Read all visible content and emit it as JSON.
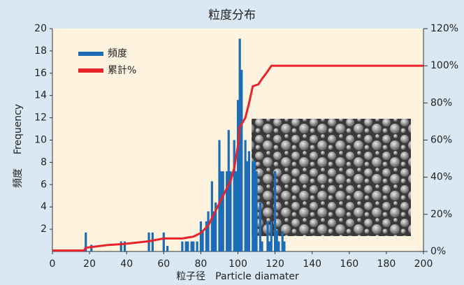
{
  "chart_data": {
    "type": "bar",
    "title": "粒度分布",
    "xlabel": "粒子径　Particle diamater",
    "ylabel": "Frequency",
    "ylabel2": "頻度",
    "xlim": [
      0,
      200
    ],
    "xticks": [
      0,
      20,
      40,
      60,
      80,
      100,
      120,
      140,
      160,
      180,
      200
    ],
    "ylim": [
      0,
      20
    ],
    "yticks": [
      2,
      4,
      6,
      8,
      10,
      12,
      14,
      16,
      18,
      20
    ],
    "y2lim": [
      0,
      120
    ],
    "y2ticks": [
      {
        "value": 0,
        "label": "0%"
      },
      {
        "value": 20,
        "label": "20%"
      },
      {
        "value": 40,
        "label": "40%"
      },
      {
        "value": 60,
        "label": "60%"
      },
      {
        "value": 80,
        "label": "80%"
      },
      {
        "value": 100,
        "label": "100%"
      },
      {
        "value": 120,
        "label": "120%"
      }
    ],
    "legend": "upper left",
    "series": [
      {
        "name": "頻度",
        "type": "bar",
        "color": "#1c6db5",
        "x": [
          18,
          21,
          37,
          39,
          52,
          54,
          60,
          62,
          70,
          72,
          73,
          75,
          76,
          78,
          80,
          81,
          83,
          84,
          86,
          87,
          88,
          90,
          91,
          92,
          94,
          95,
          96,
          98,
          99,
          100,
          101,
          102,
          104,
          105,
          106,
          108,
          109,
          110,
          112,
          113,
          116,
          117,
          118,
          120,
          121,
          122,
          124,
          125
        ],
        "values": [
          1.7,
          0.6,
          0.9,
          0.9,
          1.7,
          1.7,
          1.7,
          0.5,
          0.9,
          0.9,
          0.9,
          0.9,
          0.9,
          0.9,
          2.7,
          1.8,
          2.7,
          3.6,
          6.3,
          3.6,
          4.4,
          10,
          7.2,
          7.2,
          7.2,
          10.9,
          7.2,
          10,
          7.2,
          13.6,
          19.1,
          16.3,
          10,
          8.1,
          9,
          8.1,
          8.1,
          7.2,
          4.4,
          0.9,
          2.7,
          0.9,
          2.7,
          7.2,
          1.9,
          0.9,
          1.8,
          0.9
        ]
      },
      {
        "name": "累計%",
        "type": "line",
        "axis": "y2",
        "color": "#e8232a",
        "x": [
          0,
          17,
          18,
          22,
          30,
          38,
          52,
          60,
          70,
          76,
          80,
          84,
          88,
          92,
          96,
          98,
          100,
          101,
          104,
          106,
          108,
          111,
          113,
          116,
          118,
          200
        ],
        "values": [
          0.5,
          0.5,
          2,
          2.5,
          3.5,
          4,
          5.5,
          7,
          7,
          8,
          10,
          14,
          22,
          30,
          38,
          45,
          57,
          67,
          72,
          80,
          89,
          90,
          93,
          97,
          100,
          100
        ]
      }
    ]
  }
}
